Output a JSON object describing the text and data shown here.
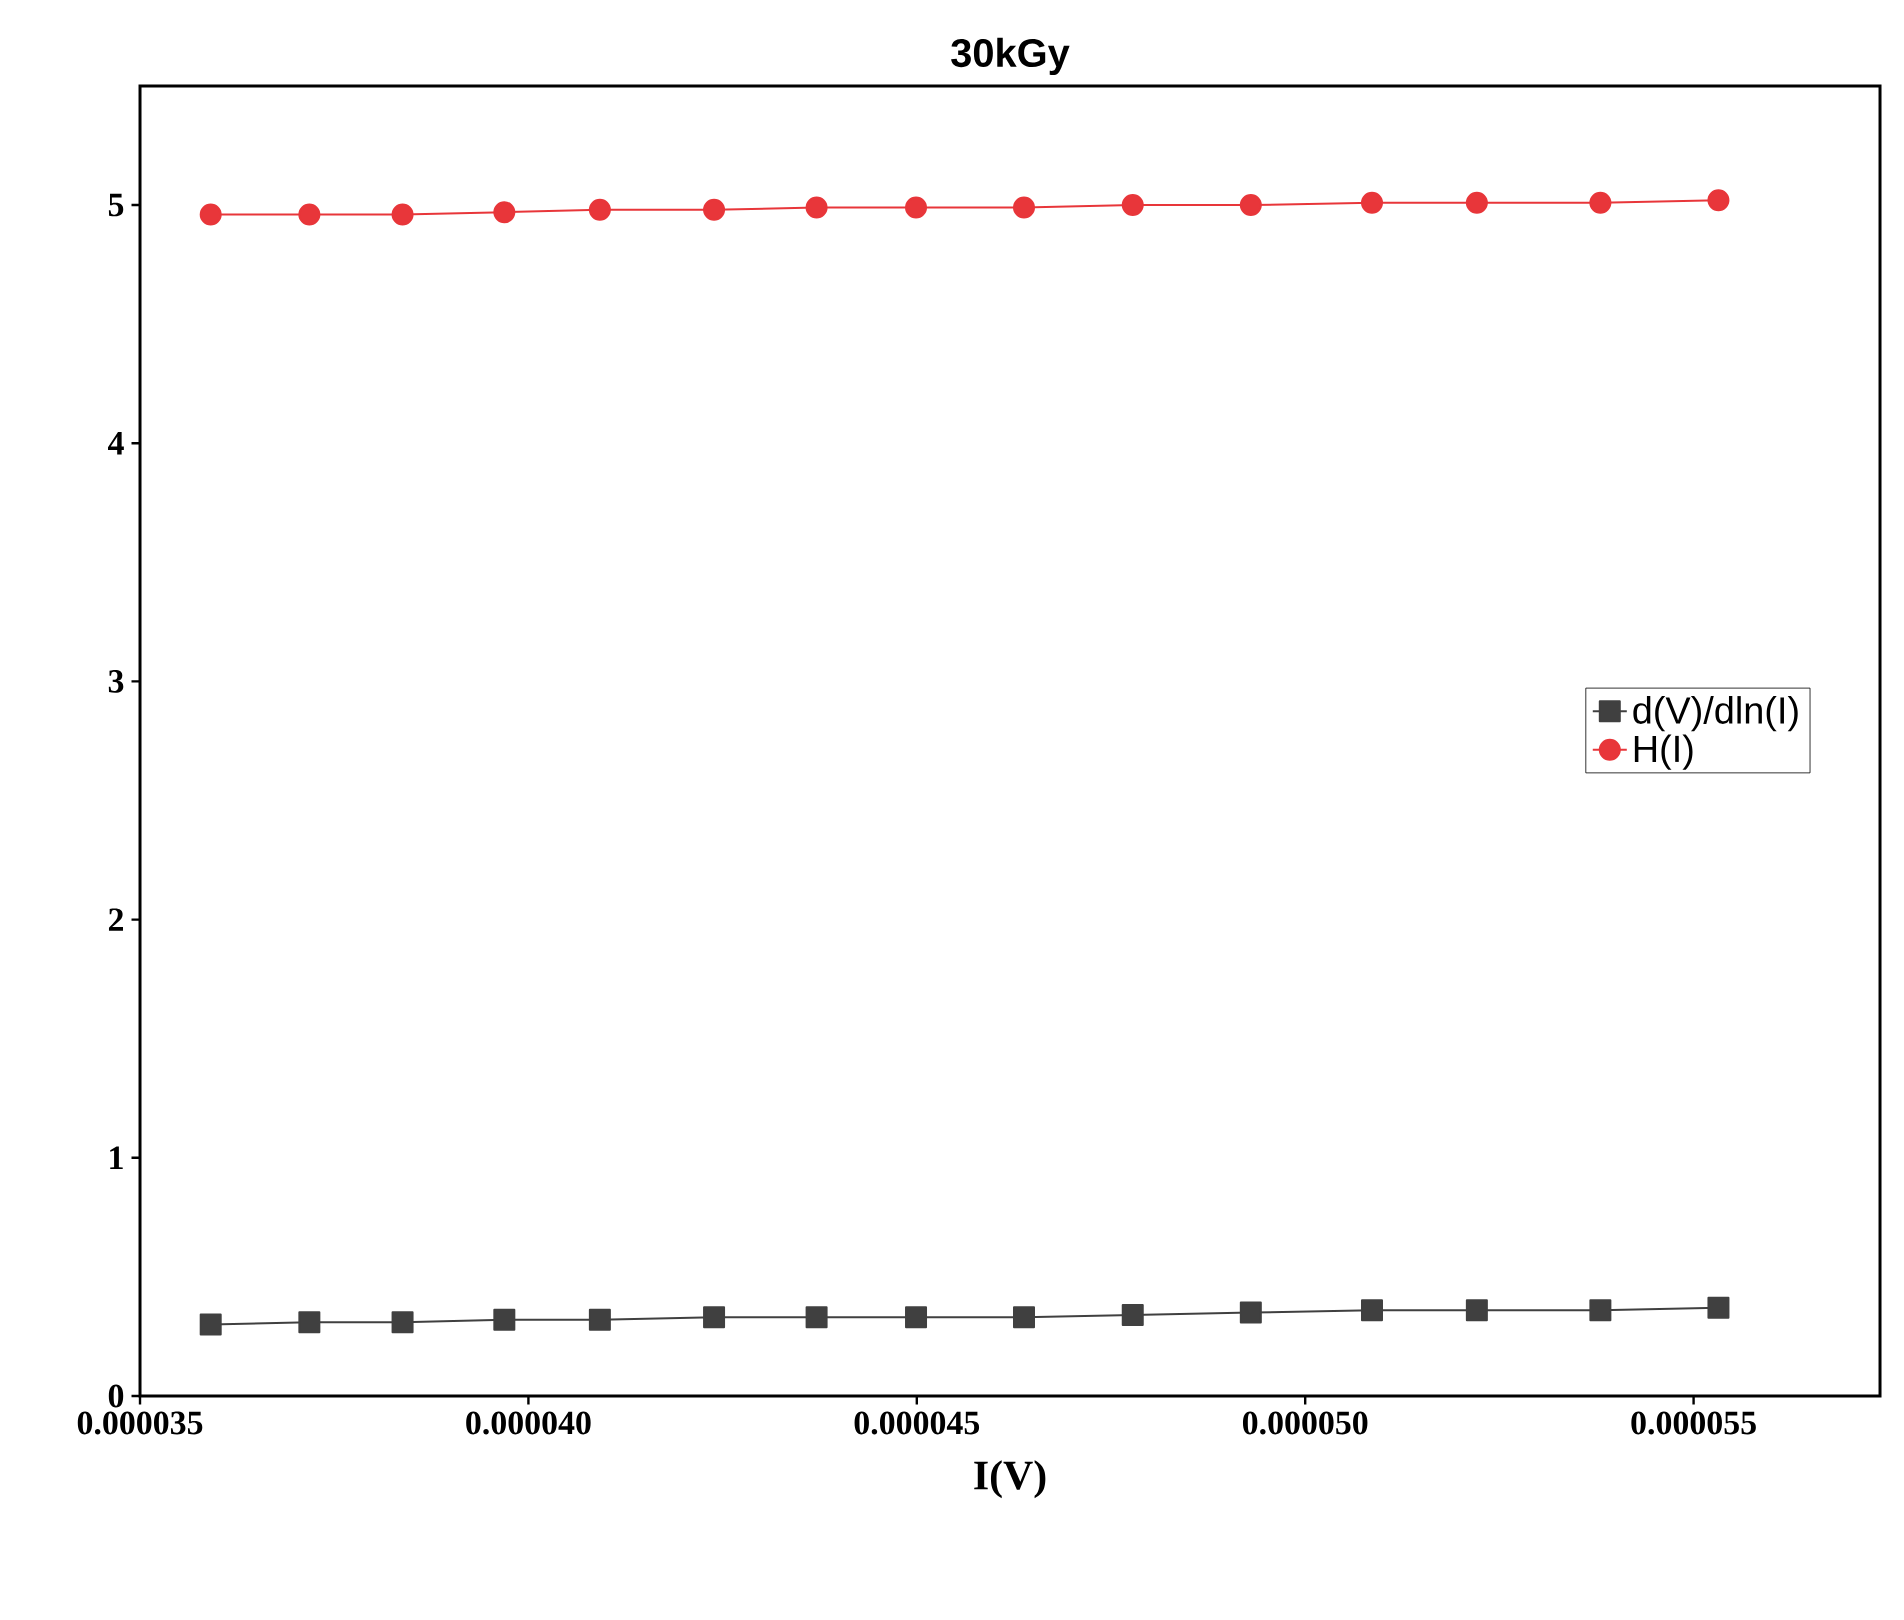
{
  "chart_data": {
    "type": "line",
    "title": "30kGy",
    "xlabel": "I(V)",
    "xlim": [
      3.5e-05,
      5.74e-05
    ],
    "ylim": [
      0,
      5.5
    ],
    "xticks": [
      {
        "value": 3.5e-05,
        "label": "0.000035"
      },
      {
        "value": 4e-05,
        "label": "0.000040"
      },
      {
        "value": 4.5e-05,
        "label": "0.000045"
      },
      {
        "value": 5e-05,
        "label": "0.000050"
      },
      {
        "value": 5.5e-05,
        "label": "0.000055"
      }
    ],
    "yticks": [
      0,
      1,
      2,
      3,
      4,
      5
    ],
    "x": [
      3.591e-05,
      3.718e-05,
      3.838e-05,
      3.969e-05,
      4.092e-05,
      4.239e-05,
      4.371e-05,
      4.499e-05,
      4.638e-05,
      4.778e-05,
      4.93e-05,
      5.086e-05,
      5.221e-05,
      5.38e-05,
      5.532e-05
    ],
    "series": [
      {
        "name": "d(V)/dln(I)",
        "color": "#404040",
        "marker": "square",
        "values": [
          0.3,
          0.31,
          0.31,
          0.32,
          0.32,
          0.33,
          0.33,
          0.33,
          0.33,
          0.34,
          0.35,
          0.36,
          0.36,
          0.36,
          0.37
        ]
      },
      {
        "name": "H(I)",
        "color": "#e8363a",
        "marker": "circle",
        "values": [
          4.96,
          4.96,
          4.96,
          4.97,
          4.98,
          4.98,
          4.99,
          4.99,
          4.99,
          5.0,
          5.0,
          5.01,
          5.01,
          5.01,
          5.02
        ]
      }
    ],
    "legend": "right",
    "grid": false,
    "line_style": "solid"
  }
}
